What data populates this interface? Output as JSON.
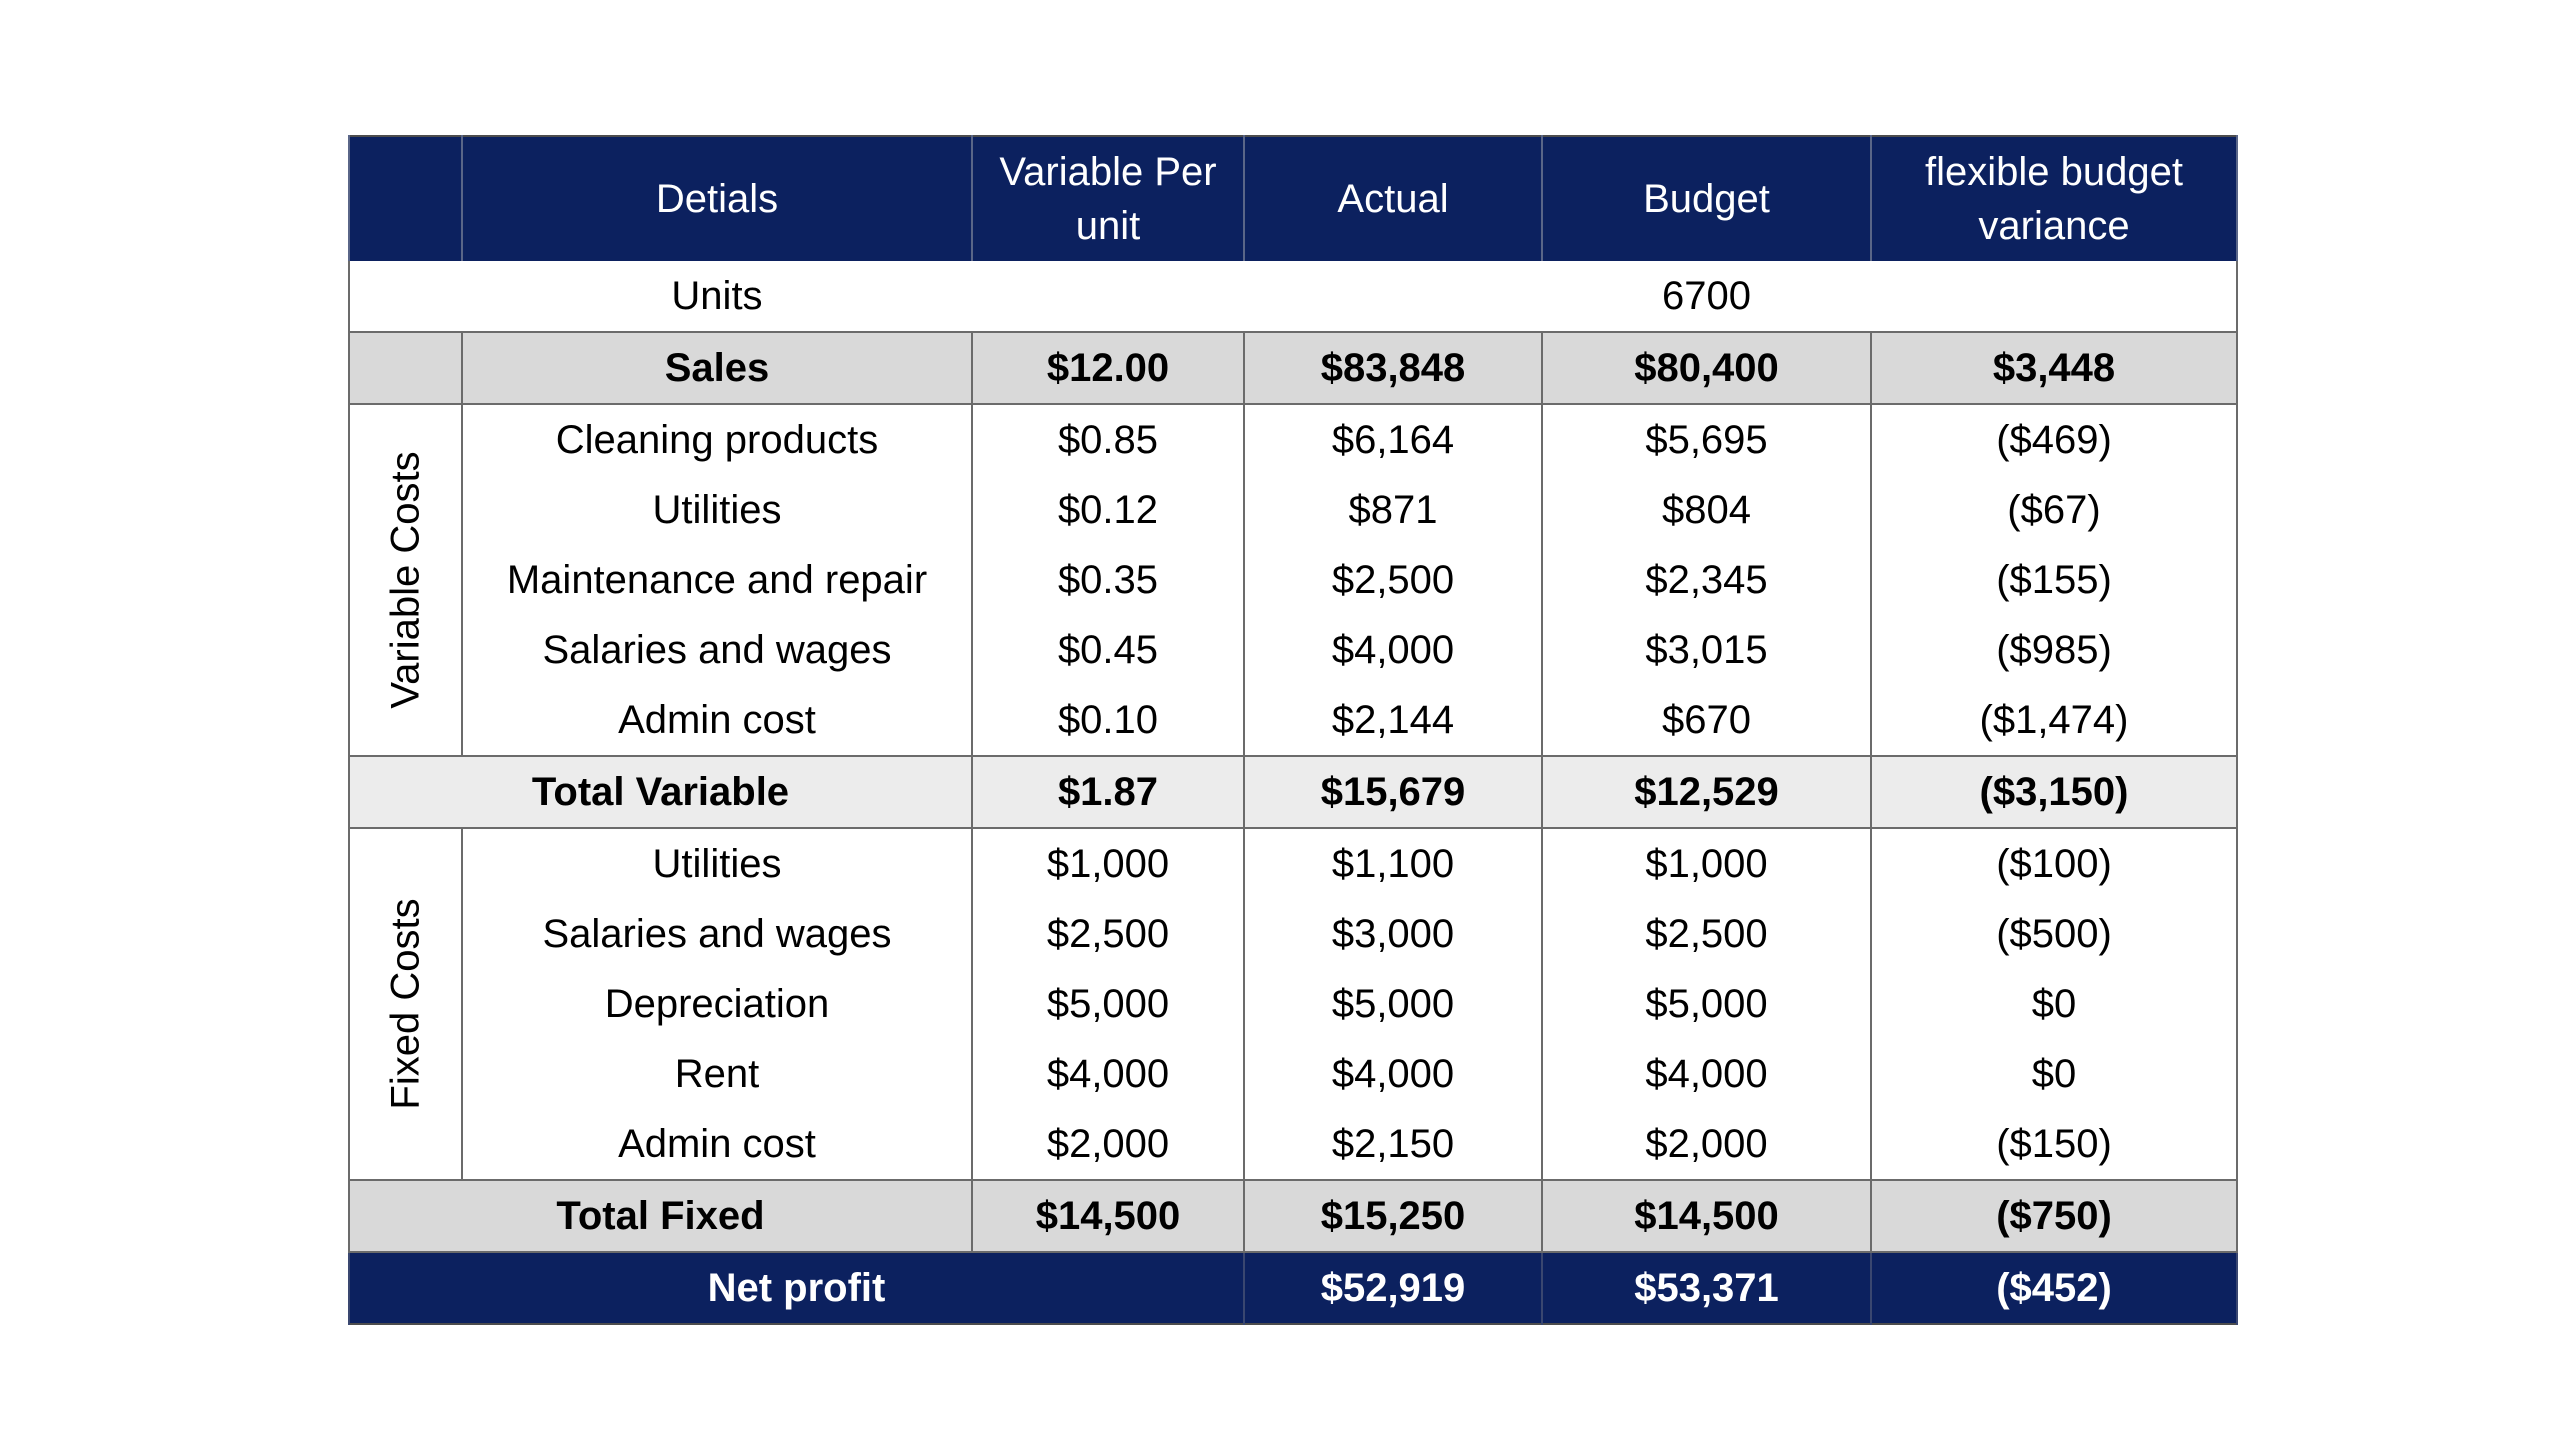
{
  "headers": {
    "details": "Detials",
    "variable_per_unit": "Variable Per unit",
    "actual": "Actual",
    "budget": "Budget",
    "variance": "flexible budget variance"
  },
  "units": {
    "label": "Units",
    "budget": "6700"
  },
  "sales": {
    "label": "Sales",
    "per_unit": "$12.00",
    "actual": "$83,848",
    "budget": "$80,400",
    "variance": "$3,448"
  },
  "variable_costs": {
    "section_label": "Variable Costs",
    "rows": [
      {
        "label": "Cleaning products",
        "per_unit": "$0.85",
        "actual": "$6,164",
        "budget": "$5,695",
        "variance": "($469)"
      },
      {
        "label": "Utilities",
        "per_unit": "$0.12",
        "actual": "$871",
        "budget": "$804",
        "variance": "($67)"
      },
      {
        "label": "Maintenance and repair",
        "per_unit": "$0.35",
        "actual": "$2,500",
        "budget": "$2,345",
        "variance": "($155)"
      },
      {
        "label": "Salaries and wages",
        "per_unit": "$0.45",
        "actual": "$4,000",
        "budget": "$3,015",
        "variance": "($985)"
      },
      {
        "label": "Admin cost",
        "per_unit": "$0.10",
        "actual": "$2,144",
        "budget": "$670",
        "variance": "($1,474)"
      }
    ],
    "total": {
      "label": "Total Variable",
      "per_unit": "$1.87",
      "actual": "$15,679",
      "budget": "$12,529",
      "variance": "($3,150)"
    }
  },
  "fixed_costs": {
    "section_label": "Fixed Costs",
    "rows": [
      {
        "label": "Utilities",
        "per_unit": "$1,000",
        "actual": "$1,100",
        "budget": "$1,000",
        "variance": "($100)"
      },
      {
        "label": "Salaries and wages",
        "per_unit": "$2,500",
        "actual": "$3,000",
        "budget": "$2,500",
        "variance": "($500)"
      },
      {
        "label": "Depreciation",
        "per_unit": "$5,000",
        "actual": "$5,000",
        "budget": "$5,000",
        "variance": "$0"
      },
      {
        "label": "Rent",
        "per_unit": "$4,000",
        "actual": "$4,000",
        "budget": "$4,000",
        "variance": "$0"
      },
      {
        "label": "Admin cost",
        "per_unit": "$2,000",
        "actual": "$2,150",
        "budget": "$2,000",
        "variance": "($150)"
      }
    ],
    "total": {
      "label": "Total Fixed",
      "per_unit": "$14,500",
      "actual": "$15,250",
      "budget": "$14,500",
      "variance": "($750)"
    }
  },
  "net_profit": {
    "label": "Net profit",
    "actual": "$52,919",
    "budget": "$53,371",
    "variance": "($452)"
  },
  "colors": {
    "header_bg": "#0c215f",
    "total_bg": "#d9d9d9",
    "light_total_bg": "#ececec"
  }
}
